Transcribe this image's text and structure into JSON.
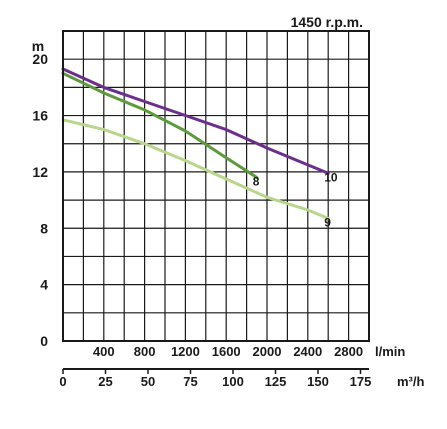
{
  "chart_data": {
    "type": "line",
    "title": "1450 r.p.m.",
    "ylabel": "m",
    "ylim": [
      0,
      22
    ],
    "xlim": [
      0,
      3000
    ],
    "y_ticks": [
      "0",
      "4",
      "8",
      "12",
      "16",
      "20"
    ],
    "y_tick_values": [
      0,
      4,
      8,
      12,
      16,
      20
    ],
    "x_unit_top": "l/min",
    "x_ticks_top": [
      "400",
      "800",
      "1200",
      "1600",
      "2000",
      "2400",
      "2800"
    ],
    "x_tick_values_top": [
      400,
      800,
      1200,
      1600,
      2000,
      2400,
      2800
    ],
    "x_unit_bottom": "m³/h",
    "x_ticks_bottom": [
      "0",
      "25",
      "50",
      "75",
      "100",
      "125",
      "150",
      "175"
    ],
    "x_tick_values_bottom": [
      0,
      25,
      50,
      75,
      100,
      125,
      150,
      175
    ],
    "grid": true,
    "series": [
      {
        "name": "8",
        "color": "#5d9a3c",
        "x": [
          0,
          400,
          800,
          1200,
          1600,
          1900
        ],
        "y": [
          19.0,
          17.6,
          16.4,
          14.9,
          13.0,
          11.6
        ]
      },
      {
        "name": "9",
        "color": "#b8d68c",
        "x": [
          0,
          400,
          800,
          1200,
          1600,
          2000,
          2400,
          2600
        ],
        "y": [
          15.7,
          15.0,
          14.0,
          12.8,
          11.5,
          10.2,
          9.3,
          8.7
        ]
      },
      {
        "name": "10",
        "color": "#6b2e8c",
        "x": [
          0,
          400,
          800,
          1200,
          1600,
          2000,
          2400,
          2600
        ],
        "y": [
          19.3,
          18.0,
          17.0,
          16.0,
          15.0,
          13.7,
          12.5,
          11.9
        ]
      }
    ]
  }
}
